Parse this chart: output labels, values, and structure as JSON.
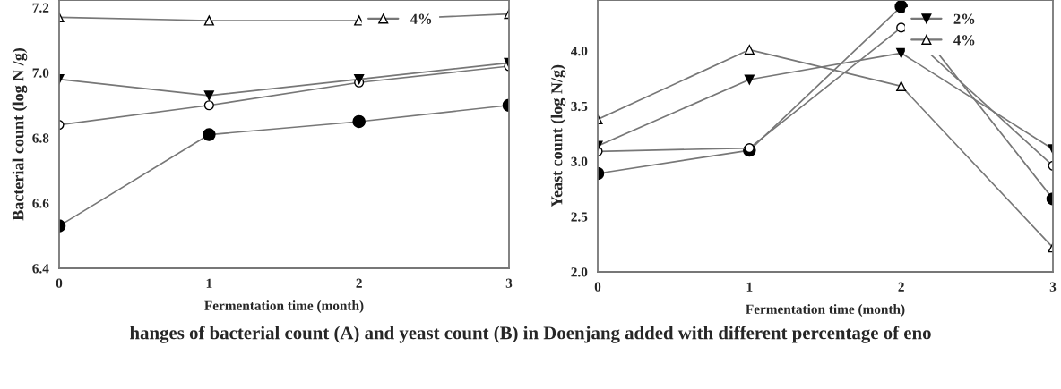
{
  "chart_data": [
    {
      "type": "line",
      "xlabel": "Fermentation time (month)",
      "ylabel": "Bacterial count (log N /g)",
      "x": [
        0,
        1,
        2,
        3
      ],
      "xlim": [
        0,
        3
      ],
      "xticks": [
        0,
        1,
        2,
        3
      ],
      "ylim": [
        6.4,
        7.223
      ],
      "yticks": [
        {
          "value": 6.4,
          "label": "6.4"
        },
        {
          "value": 6.6,
          "label": "6.6"
        },
        {
          "value": 6.8,
          "label": "6.8"
        },
        {
          "value": 7.0,
          "label": "7.0"
        },
        {
          "value": 7.2,
          "label": "7.2"
        }
      ],
      "legend": "top right",
      "grid": false,
      "series": [
        {
          "color": "#000000",
          "marker": "circle",
          "values": [
            6.53,
            6.81,
            6.85,
            6.9
          ]
        },
        {
          "color": "#ffffff",
          "marker": "circle",
          "values": [
            6.84,
            6.9,
            6.97,
            7.02
          ]
        },
        {
          "color": "#000000",
          "marker": "triangle_down",
          "values": [
            6.98,
            6.93,
            6.98,
            7.03
          ]
        },
        {
          "name": "4%",
          "color": "#ffffff",
          "marker": "triangle",
          "values": [
            7.17,
            7.16,
            7.16,
            7.18
          ]
        }
      ]
    },
    {
      "type": "line",
      "xlabel": "Fermentation time (month)",
      "ylabel": "Yeast count (log N/g)",
      "x": [
        0,
        1,
        2,
        3
      ],
      "xlim": [
        0,
        3
      ],
      "xticks": [
        0,
        1,
        2,
        3
      ],
      "ylim": [
        2.0,
        4.46
      ],
      "yticks": [
        {
          "value": 2.0,
          "label": "2.0"
        },
        {
          "value": 2.5,
          "label": "2.5"
        },
        {
          "value": 3.0,
          "label": "3.0"
        },
        {
          "value": 3.5,
          "label": "3.5"
        },
        {
          "value": 4.0,
          "label": "4.0"
        }
      ],
      "legend": "top right",
      "grid": false,
      "series": [
        {
          "color": "#000000",
          "marker": "circle",
          "values": [
            2.89,
            3.1,
            4.4,
            2.66
          ]
        },
        {
          "color": "#ffffff",
          "marker": "circle",
          "values": [
            3.09,
            3.12,
            4.21,
            2.96
          ]
        },
        {
          "name": "2%",
          "color": "#000000",
          "marker": "triangle_down",
          "values": [
            3.14,
            3.74,
            3.98,
            3.11
          ]
        },
        {
          "name": "4%",
          "color": "#ffffff",
          "marker": "triangle",
          "values": [
            3.38,
            4.01,
            3.68,
            2.22
          ]
        }
      ],
      "annotations": [
        "hanges of bacterial count (A) and yeast count (B) in Doenjang added with different percentage of eno"
      ]
    }
  ]
}
